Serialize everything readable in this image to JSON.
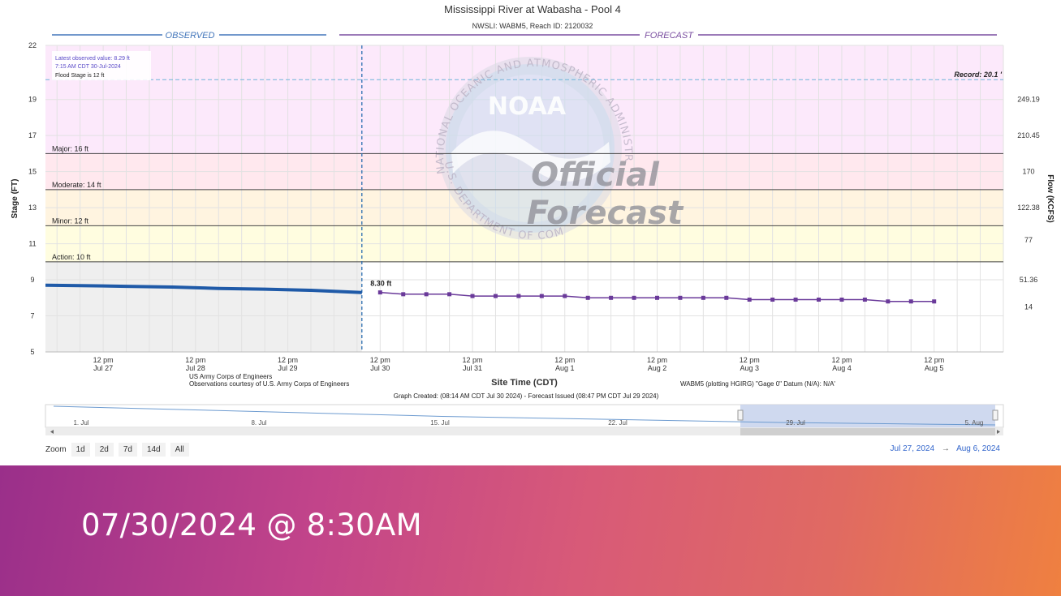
{
  "chart_data": {
    "type": "line",
    "title": "Mississippi River at Wabasha - Pool 4",
    "subtitle": "NWSLI: WABM5, Reach ID: 2120032",
    "xlabel": "Site Time (CDT)",
    "ylabel": "Stage (FT)",
    "y2label": "Flow (KCFS)",
    "ylim": [
      5,
      22
    ],
    "yticks": [
      5,
      7,
      9,
      11,
      13,
      15,
      17,
      19,
      22
    ],
    "y2ticks": [
      {
        "stage": 7.5,
        "label": "14"
      },
      {
        "stage": 9.0,
        "label": "51.36"
      },
      {
        "stage": 11.2,
        "label": "77"
      },
      {
        "stage": 13.0,
        "label": "122.38"
      },
      {
        "stage": 15.0,
        "label": "170"
      },
      {
        "stage": 17.0,
        "label": "210.45"
      },
      {
        "stage": 19.0,
        "label": "249.19"
      }
    ],
    "xlim": [
      "2024-07-26T21:00",
      "2024-08-06T06:00"
    ],
    "xticks": [
      {
        "t": "2024-07-27T12:00",
        "line1": "12 pm",
        "line2": "Jul 27"
      },
      {
        "t": "2024-07-28T12:00",
        "line1": "12 pm",
        "line2": "Jul 28"
      },
      {
        "t": "2024-07-29T12:00",
        "line1": "12 pm",
        "line2": "Jul 29"
      },
      {
        "t": "2024-07-30T12:00",
        "line1": "12 pm",
        "line2": "Jul 30"
      },
      {
        "t": "2024-07-31T12:00",
        "line1": "12 pm",
        "line2": "Jul 31"
      },
      {
        "t": "2024-08-01T12:00",
        "line1": "12 pm",
        "line2": "Aug 1"
      },
      {
        "t": "2024-08-02T12:00",
        "line1": "12 pm",
        "line2": "Aug 2"
      },
      {
        "t": "2024-08-03T12:00",
        "line1": "12 pm",
        "line2": "Aug 3"
      },
      {
        "t": "2024-08-04T12:00",
        "line1": "12 pm",
        "line2": "Aug 4"
      },
      {
        "t": "2024-08-05T12:00",
        "line1": "12 pm",
        "line2": "Aug 5"
      }
    ],
    "now": "2024-07-30T07:15",
    "grid": true,
    "observed_label": "OBSERVED",
    "forecast_label": "FORECAST",
    "flood_categories": [
      {
        "name": "Action: 10 ft",
        "stage": 10,
        "color": "#ffffff"
      },
      {
        "name": "Minor: 12 ft",
        "stage": 12,
        "color": "#fffde0"
      },
      {
        "name": "Moderate: 14 ft",
        "stage": 14,
        "color": "#fff4e0"
      },
      {
        "name": "Major: 16 ft",
        "stage": 16,
        "color": "#ffe8ee"
      }
    ],
    "record": {
      "label": "Record: 20.1 '",
      "stage": 20.1,
      "color": "#fce9fb"
    },
    "series": [
      {
        "name": "Observed",
        "color": "#1f5aa8",
        "x": [
          "2024-07-26T21:00",
          "2024-07-27T06:00",
          "2024-07-27T18:00",
          "2024-07-28T06:00",
          "2024-07-28T18:00",
          "2024-07-29T06:00",
          "2024-07-29T18:00",
          "2024-07-30T07:15"
        ],
        "values": [
          8.7,
          8.68,
          8.64,
          8.6,
          8.52,
          8.48,
          8.42,
          8.29
        ]
      },
      {
        "name": "Forecast",
        "color": "#6a3a9a",
        "x": [
          "2024-07-30T12:00",
          "2024-07-30T18:00",
          "2024-07-31T00:00",
          "2024-07-31T06:00",
          "2024-07-31T12:00",
          "2024-07-31T18:00",
          "2024-08-01T00:00",
          "2024-08-01T06:00",
          "2024-08-01T12:00",
          "2024-08-01T18:00",
          "2024-08-02T00:00",
          "2024-08-02T06:00",
          "2024-08-02T12:00",
          "2024-08-02T18:00",
          "2024-08-03T00:00",
          "2024-08-03T06:00",
          "2024-08-03T12:00",
          "2024-08-03T18:00",
          "2024-08-04T00:00",
          "2024-08-04T06:00",
          "2024-08-04T12:00",
          "2024-08-04T18:00",
          "2024-08-05T00:00",
          "2024-08-05T06:00",
          "2024-08-05T12:00"
        ],
        "values": [
          8.3,
          8.2,
          8.2,
          8.2,
          8.1,
          8.1,
          8.1,
          8.1,
          8.1,
          8.0,
          8.0,
          8.0,
          8.0,
          8.0,
          8.0,
          8.0,
          7.9,
          7.9,
          7.9,
          7.9,
          7.9,
          7.9,
          7.8,
          7.8,
          7.8
        ]
      }
    ],
    "annotations": {
      "forecast_first": "8.30 ft",
      "latest_observed": "Latest observed value: 8.29 ft",
      "latest_time": "7:15 AM CDT 30-Jul-2024",
      "flood_stage": "Flood Stage is 12 ft"
    },
    "credits": {
      "agency": "US Army Corps of Engineers",
      "observations": "Observations courtesy of U.S. Army Corps of Engineers",
      "datum": "WABM5 (plotting HGIRG) \"Gage 0\" Datum (N/A): N/A'",
      "created": "Graph Created: (08:14 AM CDT Jul 30 2024) - Forecast Issued (08:47 PM CDT Jul 29 2024)"
    },
    "watermark": {
      "ring_top": "NATIONAL OCEANIC AND ATMOSPHERIC ADMINISTRATION",
      "ring_bottom": "U.S. DEPARTMENT OF COMMERCE",
      "logo": "NOAA",
      "line1": "Official",
      "line2": "Forecast"
    },
    "navigator": {
      "labels": [
        "1. Jul",
        "8. Jul",
        "15. Jul",
        "22. Jul",
        "29. Jul",
        "5. Aug"
      ],
      "selection": [
        "2024-07-27",
        "2024-08-06"
      ]
    }
  },
  "zoom": {
    "label": "Zoom",
    "buttons": [
      "1d",
      "2d",
      "7d",
      "14d",
      "All"
    ]
  },
  "range": {
    "from": "Jul 27, 2024",
    "arrow": "→",
    "to": "Aug 6, 2024"
  },
  "banner": {
    "text": "07/30/2024 @ 8:30AM"
  },
  "colors": {
    "observed": "#1f5aa8",
    "forecast": "#6a3a9a",
    "banner_start": "#9a2f8a",
    "banner_end": "#ef8040"
  }
}
